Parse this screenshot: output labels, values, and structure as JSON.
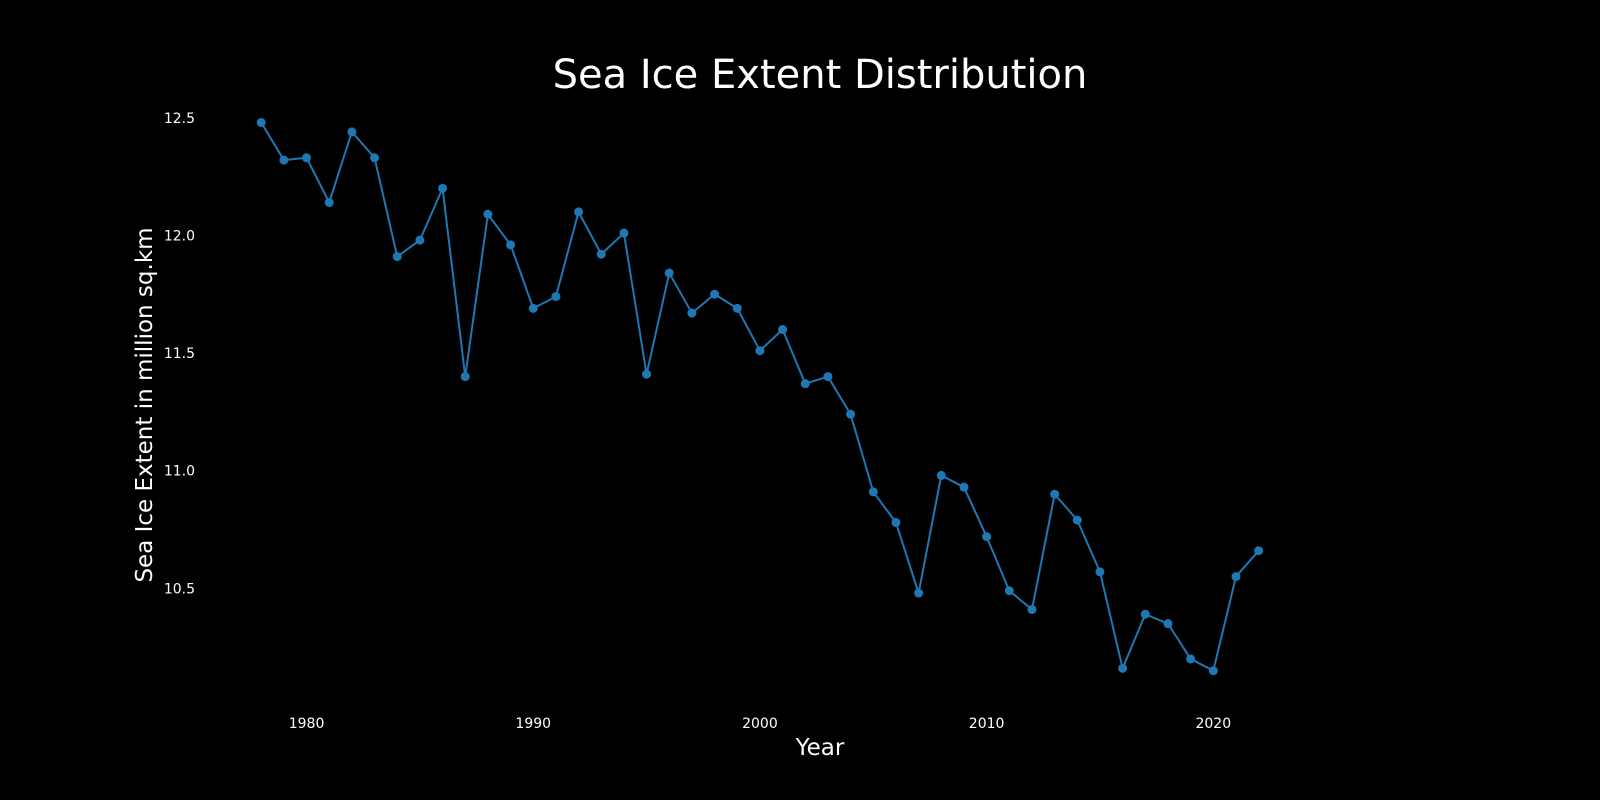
{
  "chart_data": {
    "type": "line",
    "title": "Sea Ice Extent Distribution",
    "xlabel": "Year",
    "ylabel": "Sea Ice Extent in million sq.km",
    "xlim": [
      1975.3,
      2030
    ],
    "ylim": [
      10.0,
      12.55
    ],
    "xticks": [
      1980,
      1990,
      2000,
      2010,
      2020
    ],
    "yticks": [
      10.5,
      11.0,
      11.5,
      12.0,
      12.5
    ],
    "xtick_labels": [
      "1980",
      "1990",
      "2000",
      "2010",
      "2020"
    ],
    "ytick_labels": [
      "10.5",
      "11.0",
      "11.5",
      "12.0",
      "12.5"
    ],
    "grid": false,
    "colors": {
      "background": "#000000",
      "series": "#1f77b4",
      "text": "#ffffff"
    },
    "series": [
      {
        "x": [
          1978,
          1979,
          1980,
          1981,
          1982,
          1983,
          1984,
          1985,
          1986,
          1987,
          1988,
          1989,
          1990,
          1991,
          1992,
          1993,
          1994,
          1995,
          1996,
          1997,
          1998,
          1999,
          2000,
          2001,
          2002,
          2003,
          2004,
          2005,
          2006,
          2007,
          2008,
          2009,
          2010,
          2011,
          2012,
          2013,
          2014,
          2015,
          2016,
          2017,
          2018,
          2019,
          2020,
          2021,
          2022
        ],
        "values": [
          12.48,
          12.32,
          12.33,
          12.14,
          12.44,
          12.33,
          11.91,
          11.98,
          12.2,
          11.4,
          12.09,
          11.96,
          11.69,
          11.74,
          12.1,
          11.92,
          12.01,
          11.41,
          11.84,
          11.67,
          11.75,
          11.69,
          11.51,
          11.6,
          11.37,
          11.4,
          11.24,
          10.91,
          10.78,
          10.48,
          10.98,
          10.93,
          10.72,
          10.49,
          10.41,
          10.9,
          10.79,
          10.57,
          10.16,
          10.39,
          10.35,
          10.2,
          10.15,
          10.55,
          10.66
        ]
      }
    ]
  }
}
